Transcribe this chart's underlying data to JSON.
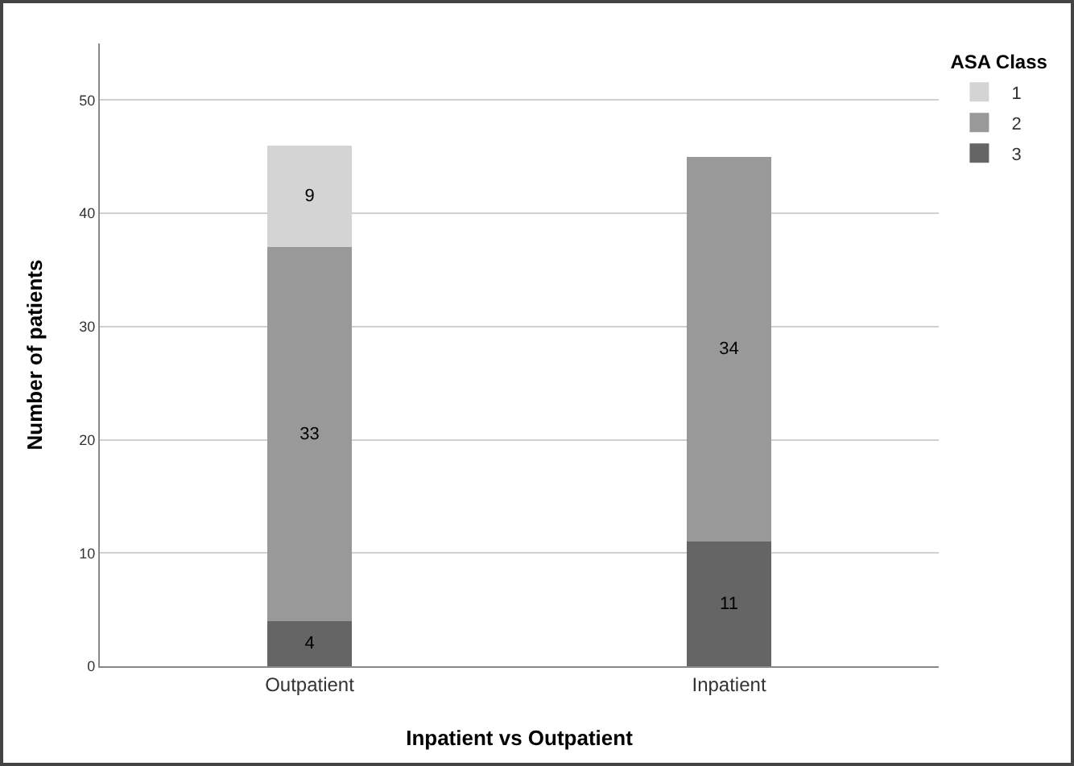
{
  "chart_data": {
    "type": "bar",
    "stacked": true,
    "xlabel": "Inpatient vs Outpatient",
    "ylabel": "Number of patients",
    "legend_title": "ASA Class",
    "categories": [
      "Outpatient",
      "Inpatient"
    ],
    "series": [
      {
        "name": "3",
        "color": "#656565",
        "values": [
          4,
          11
        ]
      },
      {
        "name": "2",
        "color": "#999999",
        "values": [
          33,
          34
        ]
      },
      {
        "name": "1",
        "color": "#d4d4d4",
        "values": [
          9,
          null
        ]
      }
    ],
    "ylim": [
      0,
      55
    ],
    "yticks": [
      0,
      10,
      20,
      30,
      40,
      50
    ],
    "grid": "y",
    "legend": "top right",
    "data_labels": true
  }
}
